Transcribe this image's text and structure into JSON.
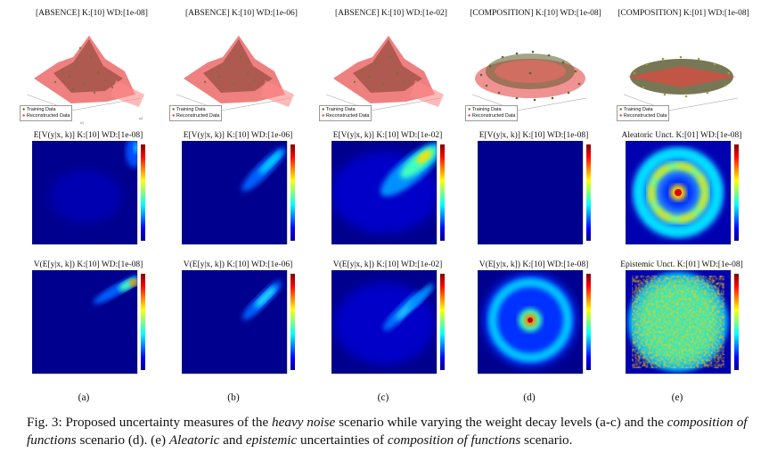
{
  "columns": [
    {
      "label": "(a)",
      "surface_title": "[ABSENCE] K:[10] WD:[1e-08]",
      "mid_title": "E[V(y|x, k)] K:[10] WD:[1e-08]",
      "bot_title": "V(E[y|x, k]) K:[10] WD:[1e-08]"
    },
    {
      "label": "(b)",
      "surface_title": "[ABSENCE] K:[10] WD:[1e-06]",
      "mid_title": "E[V(y|x, k)] K:[10] WD:[1e-06]",
      "bot_title": "V(E[y|x, k]) K:[10] WD:[1e-06]"
    },
    {
      "label": "(c)",
      "surface_title": "[ABSENCE] K:[10] WD:[1e-02]",
      "mid_title": "E[V(y|x, k)] K:[10] WD:[1e-02]",
      "bot_title": "V(E[y|x, k]) K:[10] WD:[1e-02]"
    },
    {
      "label": "(d)",
      "surface_title": "[COMPOSITION] K:[10] WD:[1e-08]",
      "mid_title": "E[V(y|x, k)] K:[10] WD:[1e-08]",
      "bot_title": "V(E[y|x, k]) K:[10] WD:[1e-08]"
    },
    {
      "label": "(e)",
      "surface_title": "[COMPOSITION] K:[01] WD:[1e-08]",
      "mid_title": "Aleatoric Unct. K:[01] WD:[1e-08]",
      "bot_title": "Epistemic Unct. K:[01] WD:[1e-08]"
    }
  ],
  "legend": {
    "training": "Training Data",
    "reconstructed": "Reconstructed Data"
  },
  "caption": {
    "p1": "Fig. 3: Proposed uncertainty measures of the ",
    "e1": "heavy noise",
    "p2": " scenario while varying the weight decay levels (a-c) and the ",
    "e2": "composition of functions",
    "p3": " scenario (d). (e) ",
    "e3": "Aleatoric",
    "p4": " and ",
    "e4": "epistemic",
    "p5": " uncertainties of ",
    "e5": "composition of functions",
    "p6": " scenario."
  },
  "colors": {
    "jet_low": "#00008f",
    "jet_high": "#800000",
    "training_marker": "#556b2f",
    "reconstructed_marker": "#ff2a2a"
  }
}
